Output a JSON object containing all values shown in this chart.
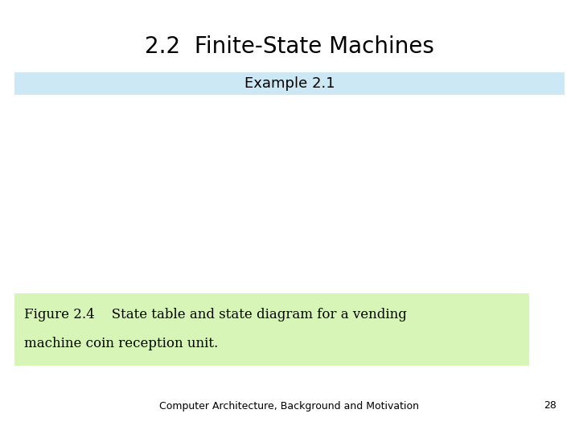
{
  "title": "2.2  Finite-State Machines",
  "subtitle": "Example 2.1",
  "subtitle_bg": "#cce8f4",
  "figure_caption_line1": "Figure 2.4    State table and state diagram for a vending",
  "figure_caption_line2": "machine coin reception unit.",
  "caption_bg": "#d8f5b8",
  "footer_text": "Computer Architecture, Background and Motivation",
  "footer_page": "28",
  "background_color": "#ffffff",
  "title_fontsize": 20,
  "subtitle_fontsize": 13,
  "caption_fontsize": 12,
  "footer_fontsize": 9
}
